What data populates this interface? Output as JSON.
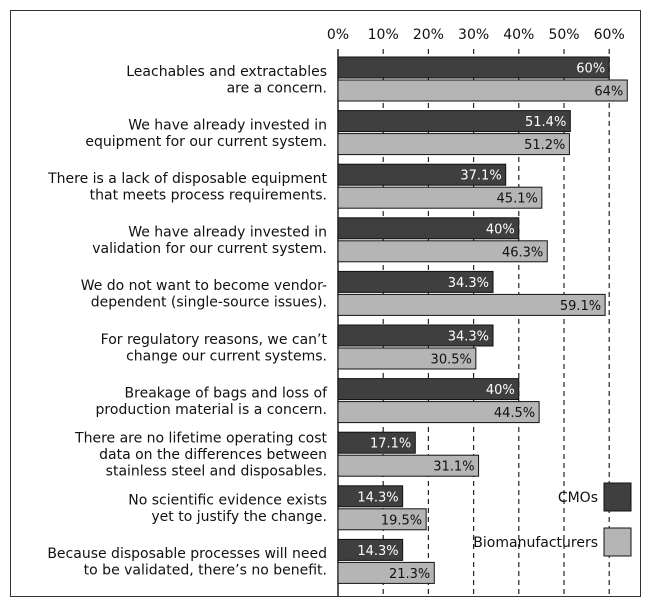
{
  "chart_data": {
    "type": "bar",
    "orientation": "horizontal",
    "categories": [
      [
        "Leachables and extractables",
        "are a concern."
      ],
      [
        "We have already invested in",
        "equipment for our current system."
      ],
      [
        "There is a lack of disposable equipment",
        "that meets process requirements."
      ],
      [
        "We have already invested in",
        "validation for our current system."
      ],
      [
        "We do not want to become vendor-",
        "dependent (single-source issues)."
      ],
      [
        "For regulatory reasons, we can’t",
        "change our current systems."
      ],
      [
        "Breakage of bags and loss of",
        "production material is a concern."
      ],
      [
        "There are no lifetime operating cost",
        "data on the differences between",
        "stainless steel and disposables."
      ],
      [
        "No scientific evidence exists",
        "yet to justify the change."
      ],
      [
        "Because disposable processes will need",
        "to be validated, there’s no benefit."
      ]
    ],
    "series": [
      {
        "name": "CMOs",
        "color": "#3f3f3f",
        "values": [
          60,
          51.4,
          37.1,
          40,
          34.3,
          34.3,
          40,
          17.1,
          14.3,
          14.3
        ],
        "labels": [
          "60%",
          "51.4%",
          "37.1%",
          "40%",
          "34.3%",
          "34.3%",
          "40%",
          "17.1%",
          "14.3%",
          "14.3%"
        ]
      },
      {
        "name": "Biomanufacturers",
        "color": "#b5b5b5",
        "values": [
          64,
          51.2,
          45.1,
          46.3,
          59.1,
          30.5,
          44.5,
          31.1,
          19.5,
          21.3
        ],
        "labels": [
          "64%",
          "51.2%",
          "45.1%",
          "46.3%",
          "59.1%",
          "30.5%",
          "44.5%",
          "31.1%",
          "19.5%",
          "21.3%"
        ]
      }
    ],
    "x_ticks": [
      0,
      10,
      20,
      30,
      40,
      50,
      60
    ],
    "x_tick_labels": [
      "0%",
      "10%",
      "20%",
      "30%",
      "40%",
      "50%",
      "60%"
    ],
    "xlim": [
      0,
      64
    ],
    "grid": "vertical dashed",
    "legend_position": "bottom-right",
    "title": "",
    "xlabel": "",
    "ylabel": ""
  }
}
